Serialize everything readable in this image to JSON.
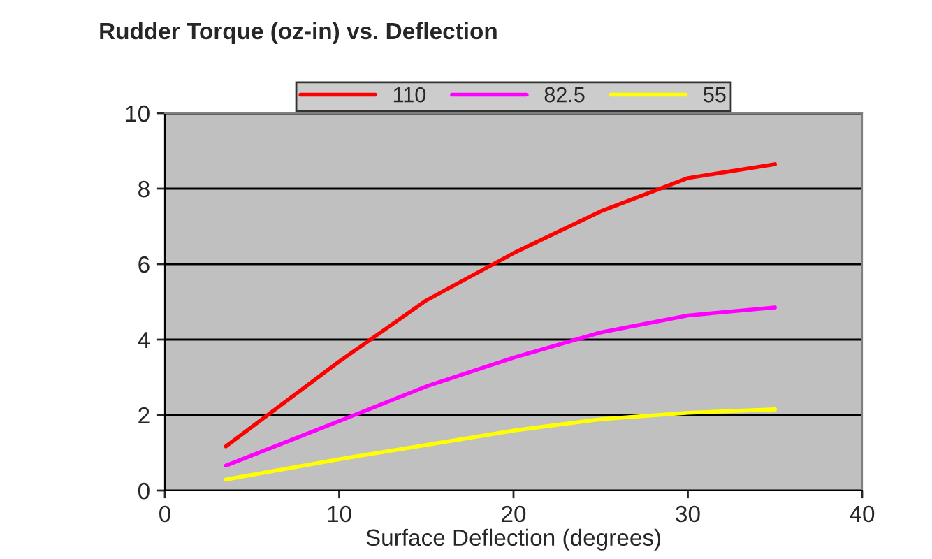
{
  "chart_data": {
    "type": "line",
    "title": "Rudder Torque (oz-in) vs. Deflection",
    "xlabel": "Surface Deflection (degrees)",
    "x": [
      3.5,
      10,
      15,
      20,
      25,
      30,
      35
    ],
    "series": [
      {
        "name": "110",
        "color": "#ff0000",
        "values": [
          1.17,
          3.42,
          5.04,
          6.29,
          7.4,
          8.28,
          8.65
        ]
      },
      {
        "name": "82.5",
        "color": "#ff00ff",
        "values": [
          0.66,
          1.84,
          2.76,
          3.52,
          4.19,
          4.64,
          4.85
        ]
      },
      {
        "name": "55",
        "color": "#ffff00",
        "values": [
          0.29,
          0.83,
          1.21,
          1.59,
          1.89,
          2.06,
          2.15
        ]
      }
    ],
    "xlim": [
      0,
      40
    ],
    "xticks": [
      0,
      10,
      20,
      30,
      40
    ],
    "ylim": [
      0,
      10
    ],
    "yticks": [
      0,
      2,
      4,
      6,
      8,
      10
    ],
    "grid": "y",
    "legend": "top",
    "marker": "none",
    "line_style": "solid"
  }
}
